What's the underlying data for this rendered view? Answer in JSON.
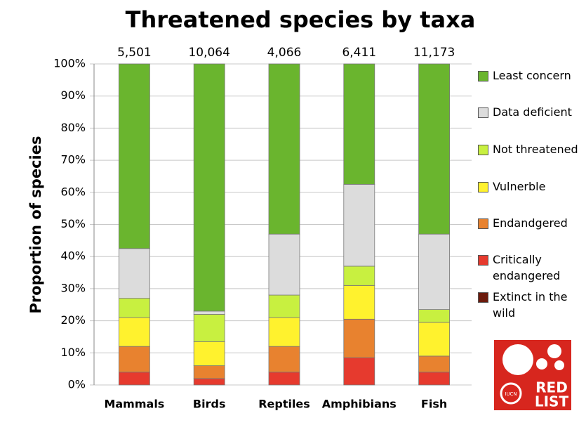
{
  "chart_data": {
    "type": "stacked_bar",
    "title": "Threatened species by taxa",
    "y_label": "Proportion of species",
    "categories": [
      "Mammals",
      "Birds",
      "Reptiles",
      "Amphibians",
      "Fish"
    ],
    "totals": {
      "values": [
        5501,
        10064,
        4066,
        6411,
        11173
      ],
      "value_labels": [
        "5,501",
        "10,064",
        "4,066",
        "6,411",
        "11,173"
      ]
    },
    "series": [
      {
        "name": "Least concern",
        "color": "#6ab52e",
        "values": [
          57.5,
          77,
          53,
          37.5,
          53
        ]
      },
      {
        "name": "Data deficient",
        "color": "#dcdcdc",
        "values": [
          15.5,
          1,
          19,
          25.5,
          23.5
        ]
      },
      {
        "name": "Not threatened",
        "color": "#c8f040",
        "values": [
          6,
          8.5,
          7,
          6,
          4
        ]
      },
      {
        "name": "Vulnerble",
        "color": "#fff22e",
        "values": [
          9,
          7.5,
          9,
          10.5,
          10.5
        ]
      },
      {
        "name": "Endandgered",
        "color": "#e8822f",
        "values": [
          8,
          4,
          8,
          12,
          5
        ]
      },
      {
        "name": "Critically endangered",
        "color": "#e63a2e",
        "values": [
          4,
          2,
          4,
          8.5,
          4
        ]
      },
      {
        "name": "Extinct in the wild",
        "color": "#6b1a0c",
        "values": [
          0,
          0,
          0,
          0,
          0
        ]
      }
    ],
    "ylim": [
      0,
      100
    ],
    "yticks": [
      {
        "value": 0,
        "label": "0%"
      },
      {
        "value": 10,
        "label": "10%"
      },
      {
        "value": 20,
        "label": "20%"
      },
      {
        "value": 30,
        "label": "30%"
      },
      {
        "value": 40,
        "label": "40%"
      },
      {
        "value": 50,
        "label": "50%"
      },
      {
        "value": 60,
        "label": "60%"
      },
      {
        "value": 70,
        "label": "70%"
      },
      {
        "value": 80,
        "label": "80%"
      },
      {
        "value": 90,
        "label": "90%"
      },
      {
        "value": 100,
        "label": "100%"
      }
    ],
    "grid": true
  },
  "logo": {
    "line1": "RED",
    "line2": "LIST",
    "mark": "IUCN"
  }
}
